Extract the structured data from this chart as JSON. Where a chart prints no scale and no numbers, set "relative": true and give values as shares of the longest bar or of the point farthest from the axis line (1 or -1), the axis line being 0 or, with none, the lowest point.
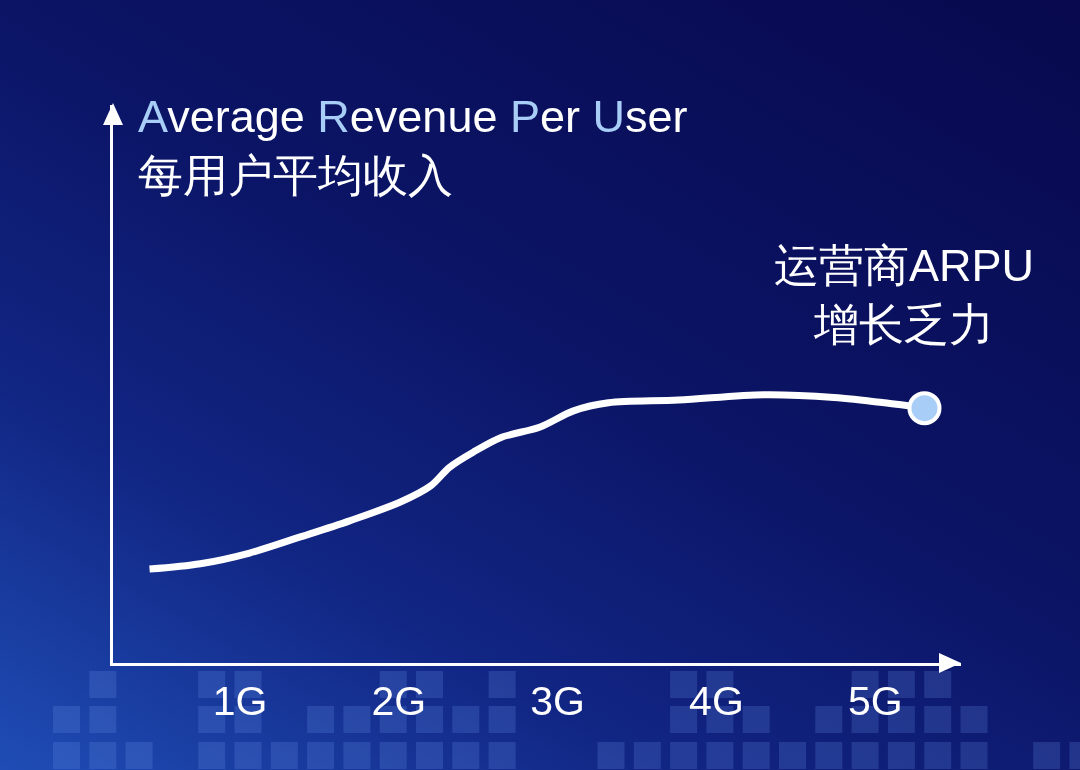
{
  "chart_data": {
    "type": "line",
    "ylabel": "Average Revenue Per User\n每用户平均收入",
    "relative": true,
    "xlim": [
      0.2,
      5.54
    ],
    "xticks": [
      {
        "value": 1,
        "label": "1G"
      },
      {
        "value": 2,
        "label": "2G"
      },
      {
        "value": 3,
        "label": "3G"
      },
      {
        "value": 4,
        "label": "4G"
      },
      {
        "value": 5,
        "label": "5G"
      }
    ],
    "series": [
      {
        "color": "#ffffff",
        "x": [
          0.43,
          0.75,
          1.06,
          1.38,
          1.69,
          2.01,
          2.2,
          2.32,
          2.48,
          2.64,
          2.89,
          3.1,
          3.32,
          3.76,
          4.3,
          4.74,
          5.06,
          5.31
        ],
        "values": [
          0.35,
          0.37,
          0.41,
          0.47,
          0.53,
          0.6,
          0.66,
          0.73,
          0.79,
          0.84,
          0.88,
          0.94,
          0.97,
          0.98,
          1,
          0.99,
          0.97,
          0.95
        ]
      },
      {
        "type": "scatter",
        "color": "#a8cdf7",
        "x": [
          5.31
        ],
        "values": [
          0.95
        ],
        "marker": "circle"
      }
    ],
    "annotations": [
      {
        "text": "运营商ARPU\n增长乏力",
        "x": 5.31,
        "y": 0.95
      }
    ],
    "marker": "none",
    "line_style": "solid",
    "grid": false,
    "legend": false
  }
}
